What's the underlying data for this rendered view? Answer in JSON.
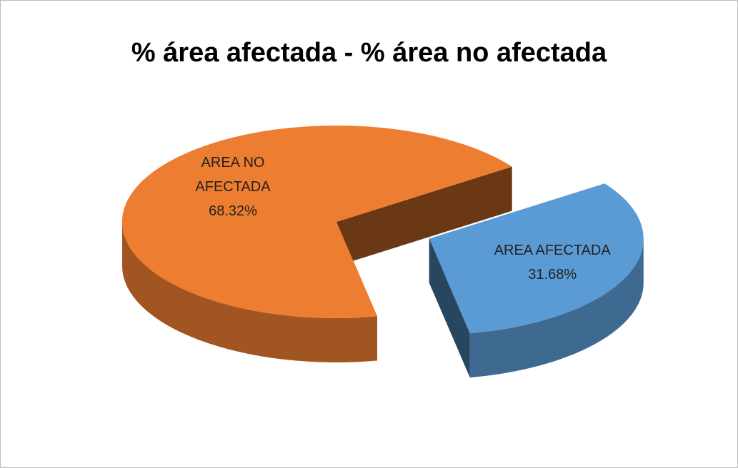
{
  "chart_data": {
    "type": "pie",
    "title": "% área afectada - % área no afectada",
    "categories": [
      "AREA AFECTADA",
      "AREA NO AFECTADA"
    ],
    "values": [
      31.68,
      68.32
    ],
    "value_labels": [
      "31.68%",
      "68.32%"
    ],
    "colors": [
      "#5b9bd5",
      "#ed7d31"
    ]
  }
}
